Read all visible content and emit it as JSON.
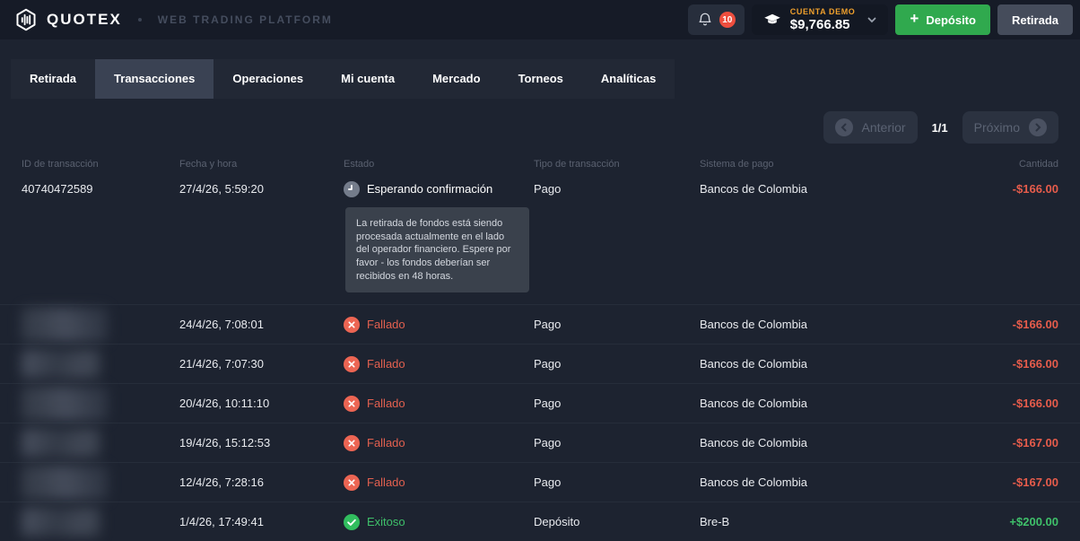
{
  "header": {
    "brand": "QUOTEX",
    "platform_label": "WEB TRADING PLATFORM",
    "notification_count": "10",
    "account_type": "CUENTA DEMO",
    "balance": "$9,766.85",
    "deposit_label": "Depósito",
    "withdraw_label": "Retirada"
  },
  "tabs": [
    {
      "label": "Retirada",
      "active": false
    },
    {
      "label": "Transacciones",
      "active": true
    },
    {
      "label": "Operaciones",
      "active": false
    },
    {
      "label": "Mi cuenta",
      "active": false
    },
    {
      "label": "Mercado",
      "active": false
    },
    {
      "label": "Torneos",
      "active": false
    },
    {
      "label": "Analíticas",
      "active": false
    }
  ],
  "pagination": {
    "prev_label": "Anterior",
    "page_indicator": "1/1",
    "next_label": "Próximo"
  },
  "table": {
    "columns": [
      {
        "label": "ID de transacción",
        "align": "left"
      },
      {
        "label": "Fecha y hora",
        "align": "left"
      },
      {
        "label": "Estado",
        "align": "left"
      },
      {
        "label": "Tipo de transacción",
        "align": "left"
      },
      {
        "label": "Sistema de pago",
        "align": "left"
      },
      {
        "label": "Cantidad",
        "align": "right"
      }
    ],
    "pending_note": "La retirada de fondos está siendo procesada actualmente en el lado del operador financiero. Espere por favor - los fondos deberían ser recibidos en 48 horas.",
    "rows": [
      {
        "id": "40740472589",
        "redacted": false,
        "datetime": "27/4/26, 5:59:20",
        "status": "Esperando confirmación",
        "status_kind": "pending",
        "type": "Pago",
        "system": "Bancos de Colombia",
        "amount": "-$166.00",
        "amount_kind": "negative",
        "show_note": true
      },
      {
        "id": "",
        "redacted": true,
        "datetime": "24/4/26, 7:08:01",
        "status": "Fallado",
        "status_kind": "failed",
        "type": "Pago",
        "system": "Bancos de Colombia",
        "amount": "-$166.00",
        "amount_kind": "negative",
        "show_note": false
      },
      {
        "id": "",
        "redacted": true,
        "datetime": "21/4/26, 7:07:30",
        "status": "Fallado",
        "status_kind": "failed",
        "type": "Pago",
        "system": "Bancos de Colombia",
        "amount": "-$166.00",
        "amount_kind": "negative",
        "show_note": false
      },
      {
        "id": "",
        "redacted": true,
        "datetime": "20/4/26, 10:11:10",
        "status": "Fallado",
        "status_kind": "failed",
        "type": "Pago",
        "system": "Bancos de Colombia",
        "amount": "-$166.00",
        "amount_kind": "negative",
        "show_note": false
      },
      {
        "id": "",
        "redacted": true,
        "datetime": "19/4/26, 15:12:53",
        "status": "Fallado",
        "status_kind": "failed",
        "type": "Pago",
        "system": "Bancos de Colombia",
        "amount": "-$167.00",
        "amount_kind": "negative",
        "show_note": false
      },
      {
        "id": "",
        "redacted": true,
        "datetime": "12/4/26, 7:28:16",
        "status": "Fallado",
        "status_kind": "failed",
        "type": "Pago",
        "system": "Bancos de Colombia",
        "amount": "-$167.00",
        "amount_kind": "negative",
        "show_note": false
      },
      {
        "id": "",
        "redacted": true,
        "datetime": "1/4/26, 17:49:41",
        "status": "Exitoso",
        "status_kind": "success",
        "type": "Depósito",
        "system": "Bre-B",
        "amount": "+$200.00",
        "amount_kind": "positive",
        "show_note": false
      }
    ]
  },
  "colors": {
    "accent_green": "#30a94e",
    "negative": "#e65c4b",
    "positive": "#3fc06a",
    "failed_red": "#e2604f",
    "success_green": "#3fc06a",
    "pending_gray": "#747c8b",
    "demo_orange": "#f0a02c",
    "badge_red": "#ee4e3e"
  }
}
